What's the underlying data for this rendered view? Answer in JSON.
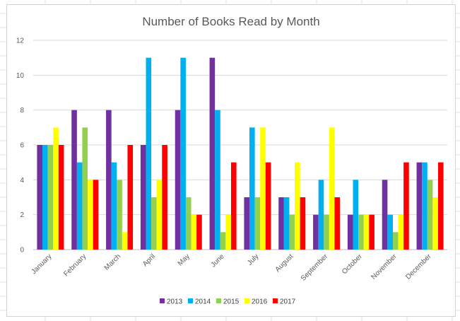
{
  "chart_data": {
    "type": "bar",
    "title": "Number of Books Read by Month",
    "xlabel": "",
    "ylabel": "",
    "ylim": [
      0,
      12
    ],
    "yticks": [
      0,
      2,
      4,
      6,
      8,
      10,
      12
    ],
    "grid": true,
    "legend_position": "bottom",
    "categories": [
      "January",
      "February",
      "March",
      "April",
      "May",
      "June",
      "July",
      "August",
      "September",
      "October",
      "November",
      "December"
    ],
    "series": [
      {
        "name": "2013",
        "color": "#7030a0",
        "values": [
          6,
          8,
          8,
          6,
          8,
          11,
          3,
          3,
          2,
          2,
          4,
          5
        ]
      },
      {
        "name": "2014",
        "color": "#00b0f0",
        "values": [
          6,
          5,
          5,
          11,
          11,
          8,
          7,
          3,
          4,
          4,
          2,
          5
        ]
      },
      {
        "name": "2015",
        "color": "#92d050",
        "values": [
          6,
          7,
          4,
          3,
          3,
          1,
          3,
          2,
          2,
          2,
          1,
          4
        ]
      },
      {
        "name": "2016",
        "color": "#ffff00",
        "values": [
          7,
          4,
          1,
          4,
          2,
          2,
          7,
          5,
          7,
          2,
          2,
          3
        ]
      },
      {
        "name": "2017",
        "color": "#ff0000",
        "values": [
          6,
          4,
          6,
          6,
          2,
          5,
          5,
          3,
          3,
          2,
          5,
          5
        ]
      }
    ]
  }
}
